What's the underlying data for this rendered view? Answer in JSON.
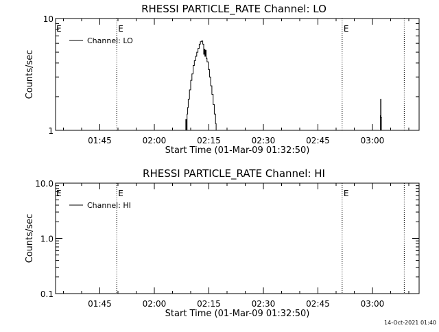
{
  "chart_data": [
    {
      "type": "line",
      "title": "RHESSI PARTICLE_RATE Channel: LO",
      "xlabel": "Start Time (01-Mar-09 01:32:50)",
      "ylabel": "Counts/sec",
      "y_scale": "log",
      "ylim": [
        1,
        10
      ],
      "y_ticks": [
        {
          "value": 1,
          "label": "1"
        },
        {
          "value": 10,
          "label": "10"
        }
      ],
      "x_range": [
        "01:32:50",
        "03:12:50"
      ],
      "x_ticks": [
        "01:45",
        "02:00",
        "02:15",
        "02:30",
        "02:45",
        "03:00"
      ],
      "legend": {
        "position": "top-left",
        "entries": [
          "Channel: LO"
        ]
      },
      "eclipse_markers": [
        {
          "time": "01:49:40",
          "label": "E"
        },
        {
          "time": "02:51:40",
          "label": "E"
        },
        {
          "time": "03:08:45",
          "label": ""
        }
      ],
      "edge_labels": [
        {
          "time": "01:32:50",
          "label": "E"
        }
      ],
      "series": [
        {
          "name": "Channel: LO",
          "points": [
            [
              "02:08:35",
              1.0
            ],
            [
              "02:08:40",
              1.25
            ],
            [
              "02:08:50",
              1.0
            ],
            [
              "02:09:00",
              1.4
            ],
            [
              "02:09:10",
              1.6
            ],
            [
              "02:09:20",
              1.9
            ],
            [
              "02:09:40",
              2.3
            ],
            [
              "02:10:00",
              2.8
            ],
            [
              "02:10:20",
              3.2
            ],
            [
              "02:10:40",
              3.8
            ],
            [
              "02:11:00",
              4.2
            ],
            [
              "02:11:20",
              4.6
            ],
            [
              "02:11:40",
              5.0
            ],
            [
              "02:12:00",
              5.4
            ],
            [
              "02:12:20",
              5.9
            ],
            [
              "02:12:40",
              6.2
            ],
            [
              "02:13:00",
              6.3
            ],
            [
              "02:13:20",
              5.9
            ],
            [
              "02:13:35",
              4.8
            ],
            [
              "02:13:45",
              5.3
            ],
            [
              "02:13:55",
              4.6
            ],
            [
              "02:14:05",
              5.2
            ],
            [
              "02:14:15",
              4.4
            ],
            [
              "02:14:30",
              4.1
            ],
            [
              "02:14:50",
              3.5
            ],
            [
              "02:15:10",
              3.0
            ],
            [
              "02:15:30",
              2.5
            ],
            [
              "02:15:50",
              2.1
            ],
            [
              "02:16:10",
              1.7
            ],
            [
              "02:16:30",
              1.4
            ],
            [
              "02:16:50",
              1.15
            ],
            [
              "02:17:00",
              1.0
            ]
          ]
        },
        {
          "name": "Channel: LO",
          "points": [
            [
              "03:02:00",
              1.0
            ],
            [
              "03:02:10",
              1.35
            ],
            [
              "03:02:15",
              1.9
            ],
            [
              "03:02:20",
              1.3
            ],
            [
              "03:02:30",
              1.0
            ]
          ]
        }
      ]
    },
    {
      "type": "line",
      "title": "RHESSI PARTICLE_RATE Channel: HI",
      "xlabel": "Start Time (01-Mar-09 01:32:50)",
      "ylabel": "Counts/sec",
      "y_scale": "log",
      "ylim": [
        0.1,
        10
      ],
      "y_ticks": [
        {
          "value": 0.1,
          "label": "0.1"
        },
        {
          "value": 1,
          "label": "1.0"
        },
        {
          "value": 10,
          "label": "10.0"
        }
      ],
      "x_range": [
        "01:32:50",
        "03:12:50"
      ],
      "x_ticks": [
        "01:45",
        "02:00",
        "02:15",
        "02:30",
        "02:45",
        "03:00"
      ],
      "legend": {
        "position": "top-left",
        "entries": [
          "Channel: HI"
        ]
      },
      "eclipse_markers": [
        {
          "time": "01:49:40",
          "label": "E"
        },
        {
          "time": "02:51:40",
          "label": "E"
        },
        {
          "time": "03:08:45",
          "label": ""
        }
      ],
      "edge_labels": [
        {
          "time": "01:32:50",
          "label": "E"
        }
      ],
      "series": [
        {
          "name": "Channel: HI",
          "points": []
        }
      ]
    }
  ],
  "timestamp": "14-Oct-2021 01:40"
}
